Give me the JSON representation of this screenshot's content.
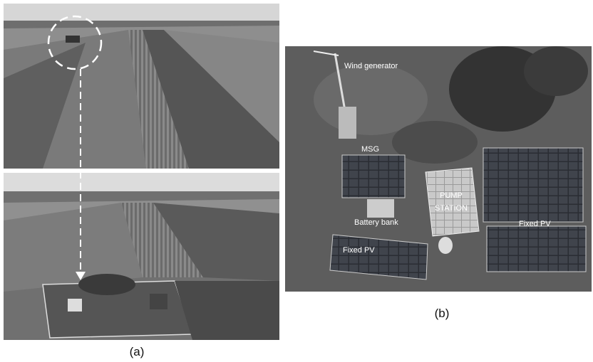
{
  "panel_a": {
    "caption": "(a)"
  },
  "panel_b": {
    "caption": "(b)",
    "labels": {
      "wind_generator": "Wind generator",
      "msg": "MSG",
      "pump_station": [
        "PUMP",
        "STATION"
      ],
      "battery_bank": "Battery bank",
      "fixed_pv_left": "Fixed PV",
      "fixed_pv_right": "Fixed PV"
    }
  }
}
